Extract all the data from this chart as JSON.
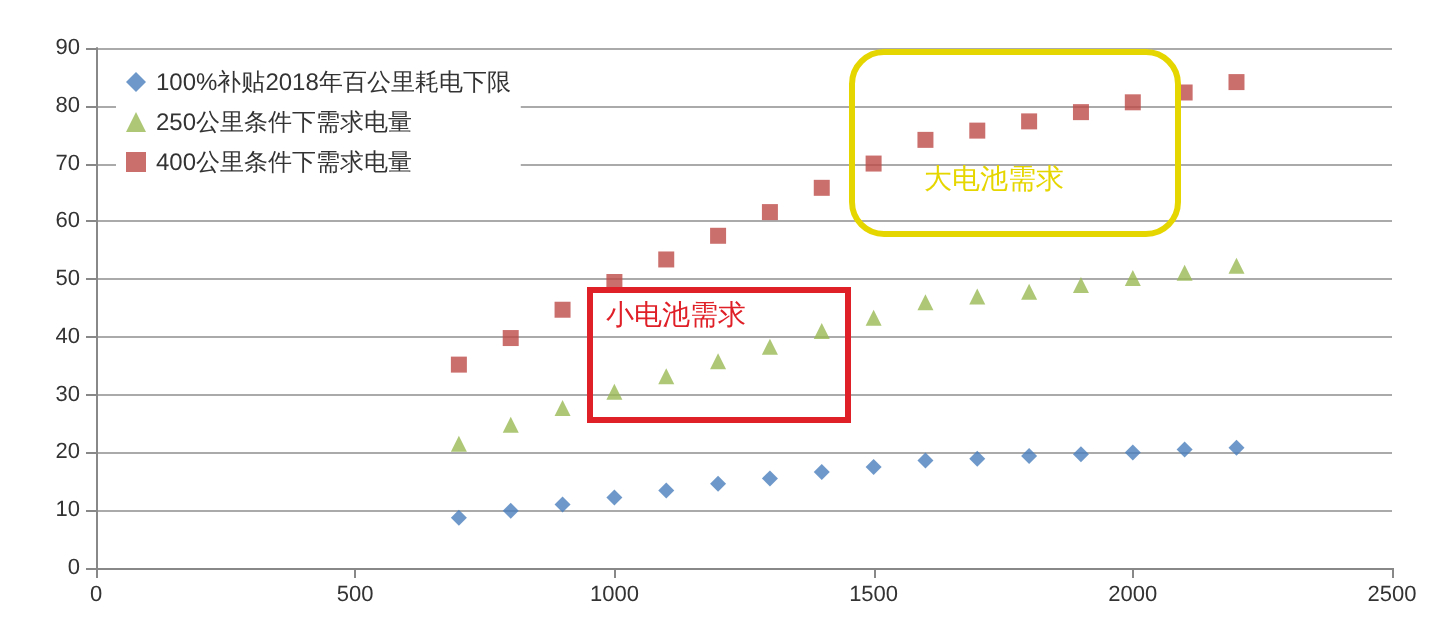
{
  "chart_data": {
    "type": "scatter",
    "x": [
      700,
      800,
      900,
      1000,
      1100,
      1200,
      1300,
      1400,
      1500,
      1600,
      1700,
      1800,
      1900,
      2000,
      2100,
      2200
    ],
    "series": [
      {
        "name": "100%补贴2018年百公里耗电下限",
        "color": "#4a7ebb",
        "marker": "diamond",
        "values": [
          8.7,
          9.9,
          11,
          12.2,
          13.4,
          14.6,
          15.5,
          16.6,
          17.5,
          18.6,
          18.9,
          19.4,
          19.7,
          20,
          20.5,
          20.8
        ]
      },
      {
        "name": "250公里条件下需求电量",
        "color": "#98b954",
        "marker": "triangle",
        "values": [
          21.5,
          24.8,
          27.7,
          30.5,
          33.2,
          35.8,
          38.3,
          41,
          43.3,
          46,
          47,
          47.8,
          49,
          50.2,
          51.1,
          52.3
        ]
      },
      {
        "name": "400公里条件下需求电量",
        "color": "#be4b48",
        "marker": "square",
        "values": [
          35.2,
          39.8,
          44.7,
          49.5,
          53.4,
          57.5,
          61.6,
          65.8,
          70,
          74.1,
          75.7,
          77.3,
          78.9,
          80.6,
          82.3,
          84.1
        ]
      }
    ],
    "xlim": [
      0,
      2500
    ],
    "xticks": [
      0,
      500,
      1000,
      1500,
      2000,
      2500
    ],
    "ylim": [
      0,
      90
    ],
    "yticks": [
      0,
      10,
      20,
      30,
      40,
      50,
      60,
      70,
      80,
      90
    ],
    "grid": "y",
    "legend": "top left",
    "annotations": [
      "小电池需求",
      "大电池需求"
    ]
  }
}
